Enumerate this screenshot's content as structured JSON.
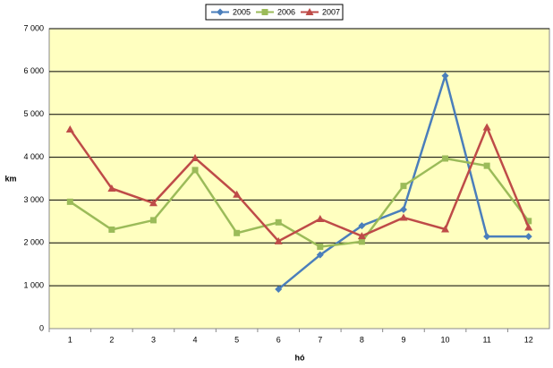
{
  "chart_data": {
    "type": "line",
    "x_label": "hó",
    "y_label": "km",
    "categories": [
      "1",
      "2",
      "3",
      "4",
      "5",
      "6",
      "7",
      "8",
      "9",
      "10",
      "11",
      "12"
    ],
    "series": [
      {
        "name": "2005",
        "color": "#4a7ebb",
        "marker": "diamond",
        "values": [
          null,
          null,
          null,
          null,
          null,
          920,
          1720,
          2400,
          2780,
          5900,
          2150,
          2150
        ]
      },
      {
        "name": "2006",
        "color": "#9bbb59",
        "marker": "square",
        "values": [
          2960,
          2310,
          2530,
          3700,
          2230,
          2480,
          1910,
          2030,
          3330,
          3970,
          3800,
          2510
        ]
      },
      {
        "name": "2007",
        "color": "#be4b48",
        "marker": "triangle",
        "values": [
          4650,
          3270,
          2930,
          3980,
          3130,
          2040,
          2560,
          2160,
          2590,
          2320,
          4700,
          2360
        ]
      }
    ],
    "ylim": [
      0,
      7000
    ],
    "yticks": [
      0,
      {
        "value": 1000,
        "label": "1 000"
      },
      {
        "value": 2000,
        "label": "2 000"
      },
      {
        "value": 3000,
        "label": "3 000"
      },
      {
        "value": 4000,
        "label": "4 000"
      },
      {
        "value": 5000,
        "label": "5 000"
      },
      {
        "value": 6000,
        "label": "6 000"
      },
      {
        "value": 7000,
        "label": "7 000"
      }
    ],
    "grid": true,
    "legend": "top",
    "plot_background": "#ffffc0"
  }
}
